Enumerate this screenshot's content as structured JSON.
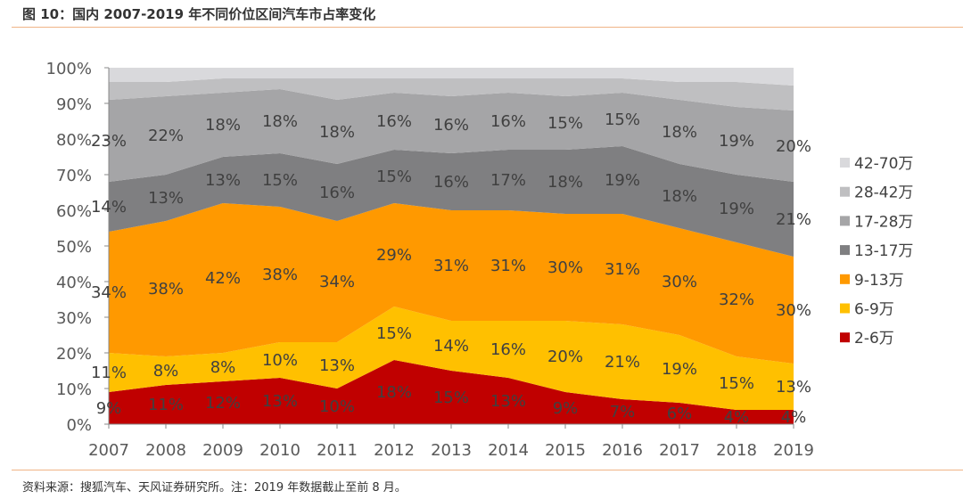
{
  "title": "图 10：国内 2007-2019 年不同价位区间汽车市占率变化",
  "source": "资料来源：搜狐汽车、天风证券研究所。注：2019 年数据截止至前 8 月。",
  "chart_data": {
    "type": "area",
    "stacked": true,
    "title": "国内 2007-2019 年不同价位区间汽车市占率变化",
    "xlabel": "",
    "ylabel": "",
    "ylim": [
      0,
      100
    ],
    "yticks": [
      "0%",
      "10%",
      "20%",
      "30%",
      "40%",
      "50%",
      "60%",
      "70%",
      "80%",
      "90%",
      "100%"
    ],
    "categories": [
      "2007",
      "2008",
      "2009",
      "2010",
      "2011",
      "2012",
      "2013",
      "2014",
      "2015",
      "2016",
      "2017",
      "2018",
      "2019"
    ],
    "legend_position": "right",
    "series": [
      {
        "name": "2-6万",
        "color": "#c00000",
        "labeled": true,
        "values": [
          9,
          11,
          12,
          13,
          10,
          18,
          15,
          13,
          9,
          7,
          6,
          4,
          4
        ]
      },
      {
        "name": "6-9万",
        "color": "#ffc000",
        "labeled": true,
        "values": [
          11,
          8,
          8,
          10,
          13,
          15,
          14,
          16,
          20,
          21,
          19,
          15,
          13
        ]
      },
      {
        "name": "9-13万",
        "color": "#ff9900",
        "labeled": true,
        "values": [
          34,
          38,
          42,
          38,
          34,
          29,
          31,
          31,
          30,
          31,
          30,
          32,
          30
        ]
      },
      {
        "name": "13-17万",
        "color": "#7f7f81",
        "labeled": true,
        "values": [
          14,
          13,
          13,
          15,
          16,
          15,
          16,
          17,
          18,
          19,
          18,
          19,
          21
        ]
      },
      {
        "name": "17-28万",
        "color": "#a5a5a7",
        "labeled": true,
        "values": [
          23,
          22,
          18,
          18,
          18,
          16,
          16,
          16,
          15,
          15,
          18,
          19,
          20
        ]
      },
      {
        "name": "28-42万",
        "color": "#bfbfc1",
        "labeled": false,
        "values": [
          5,
          4,
          4,
          3,
          6,
          4,
          5,
          4,
          5,
          4,
          5,
          7,
          7
        ]
      },
      {
        "name": "42-70万",
        "color": "#d9d9dc",
        "labeled": false,
        "values": [
          4,
          4,
          3,
          3,
          3,
          3,
          3,
          3,
          3,
          3,
          4,
          4,
          5
        ]
      }
    ]
  }
}
